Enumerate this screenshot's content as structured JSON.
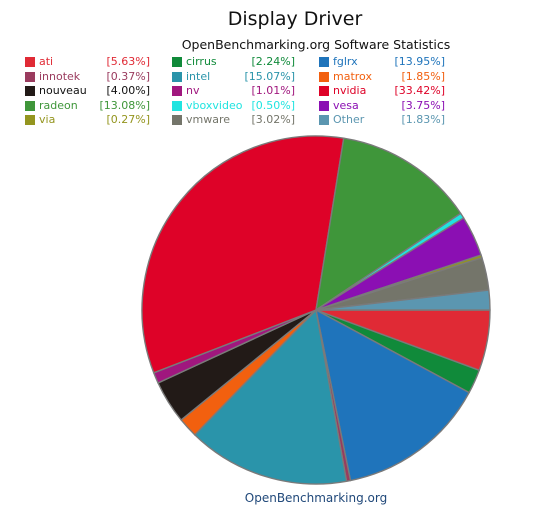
{
  "chart_data": {
    "type": "pie",
    "title": "Display Driver",
    "subtitle": "OpenBenchmarking.org Software Statistics",
    "footer": "OpenBenchmarking.org",
    "legend_placement": "top",
    "slices": [
      {
        "name": "ati",
        "value": 5.63,
        "label": "[5.63%]",
        "color": "#e02a35"
      },
      {
        "name": "innotek",
        "value": 0.37,
        "label": "[0.37%]",
        "color": "#9a3b5e"
      },
      {
        "name": "nouveau",
        "value": 4.0,
        "label": "[4.00%]",
        "color": "#221a17"
      },
      {
        "name": "radeon",
        "value": 13.08,
        "label": "[13.08%]",
        "color": "#3f963a"
      },
      {
        "name": "via",
        "value": 0.27,
        "label": "[0.27%]",
        "color": "#94951f"
      },
      {
        "name": "cirrus",
        "value": 2.24,
        "label": "[2.24%]",
        "color": "#108a3a"
      },
      {
        "name": "intel",
        "value": 15.07,
        "label": "[15.07%]",
        "color": "#2a94aa"
      },
      {
        "name": "nv",
        "value": 1.01,
        "label": "[1.01%]",
        "color": "#a0177e"
      },
      {
        "name": "vboxvideo",
        "value": 0.5,
        "label": "[0.50%]",
        "color": "#20e4e0"
      },
      {
        "name": "vmware",
        "value": 3.02,
        "label": "[3.02%]",
        "color": "#74756a"
      },
      {
        "name": "fglrx",
        "value": 13.95,
        "label": "[13.95%]",
        "color": "#1f74bb"
      },
      {
        "name": "matrox",
        "value": 1.85,
        "label": "[1.85%]",
        "color": "#f2600f"
      },
      {
        "name": "nvidia",
        "value": 33.42,
        "label": "[33.42%]",
        "color": "#de0228"
      },
      {
        "name": "vesa",
        "value": 3.75,
        "label": "[3.75%]",
        "color": "#8b0fb3"
      },
      {
        "name": "Other",
        "value": 1.83,
        "label": "[1.83%]",
        "color": "#5b96b0"
      }
    ],
    "pie_order": [
      "ati",
      "cirrus",
      "fglrx",
      "innotek",
      "intel",
      "matrox",
      "nouveau",
      "nv",
      "nvidia",
      "radeon",
      "vboxvideo",
      "vesa",
      "via",
      "vmware",
      "Other"
    ]
  }
}
